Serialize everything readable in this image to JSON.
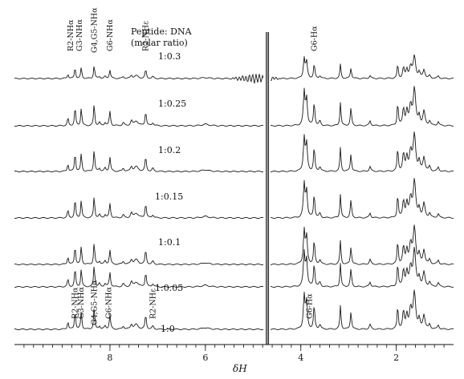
{
  "chart_data": {
    "type": "line",
    "title": "Peptide: DNA",
    "subtitle": "(molar ratio)",
    "xlabel": "δH",
    "x_reversed": true,
    "xlim": [
      10.0,
      0.8
    ],
    "ticks": [
      {
        "x": 8,
        "label": "8"
      },
      {
        "x": 6,
        "label": "6"
      },
      {
        "x": 4,
        "label": "4"
      },
      {
        "x": 2,
        "label": "2"
      }
    ],
    "grid": false,
    "series": [
      {
        "name": "1:0.3"
      },
      {
        "name": "1:0.25"
      },
      {
        "name": "1:0.2"
      },
      {
        "name": "1:0.15"
      },
      {
        "name": "1:0.1"
      },
      {
        "name": "1:0.05"
      },
      {
        "name": "1:0"
      }
    ],
    "peak_labels_top": [
      {
        "text": "R2-NHα",
        "x": 8.82
      },
      {
        "text": "G3-NHα",
        "x": 8.64
      },
      {
        "text": "G4,G5-NHα",
        "x": 8.33
      },
      {
        "text": "G6-NHα",
        "x": 8.0
      },
      {
        "text": "R2-NHε",
        "x": 7.25
      },
      {
        "text": "G6-Hα",
        "x": 3.72
      }
    ],
    "peak_labels_bottom": [
      {
        "text": "R2-NHα",
        "x": 8.73
      },
      {
        "text": "G3-NHα",
        "x": 8.6
      },
      {
        "text": "G4,G5-NHα",
        "x": 8.33
      },
      {
        "text": "G6-NHα",
        "x": 8.02
      },
      {
        "text": "R2-NHε",
        "x": 7.1
      },
      {
        "text": "G6-Hα",
        "x": 3.82
      }
    ]
  }
}
